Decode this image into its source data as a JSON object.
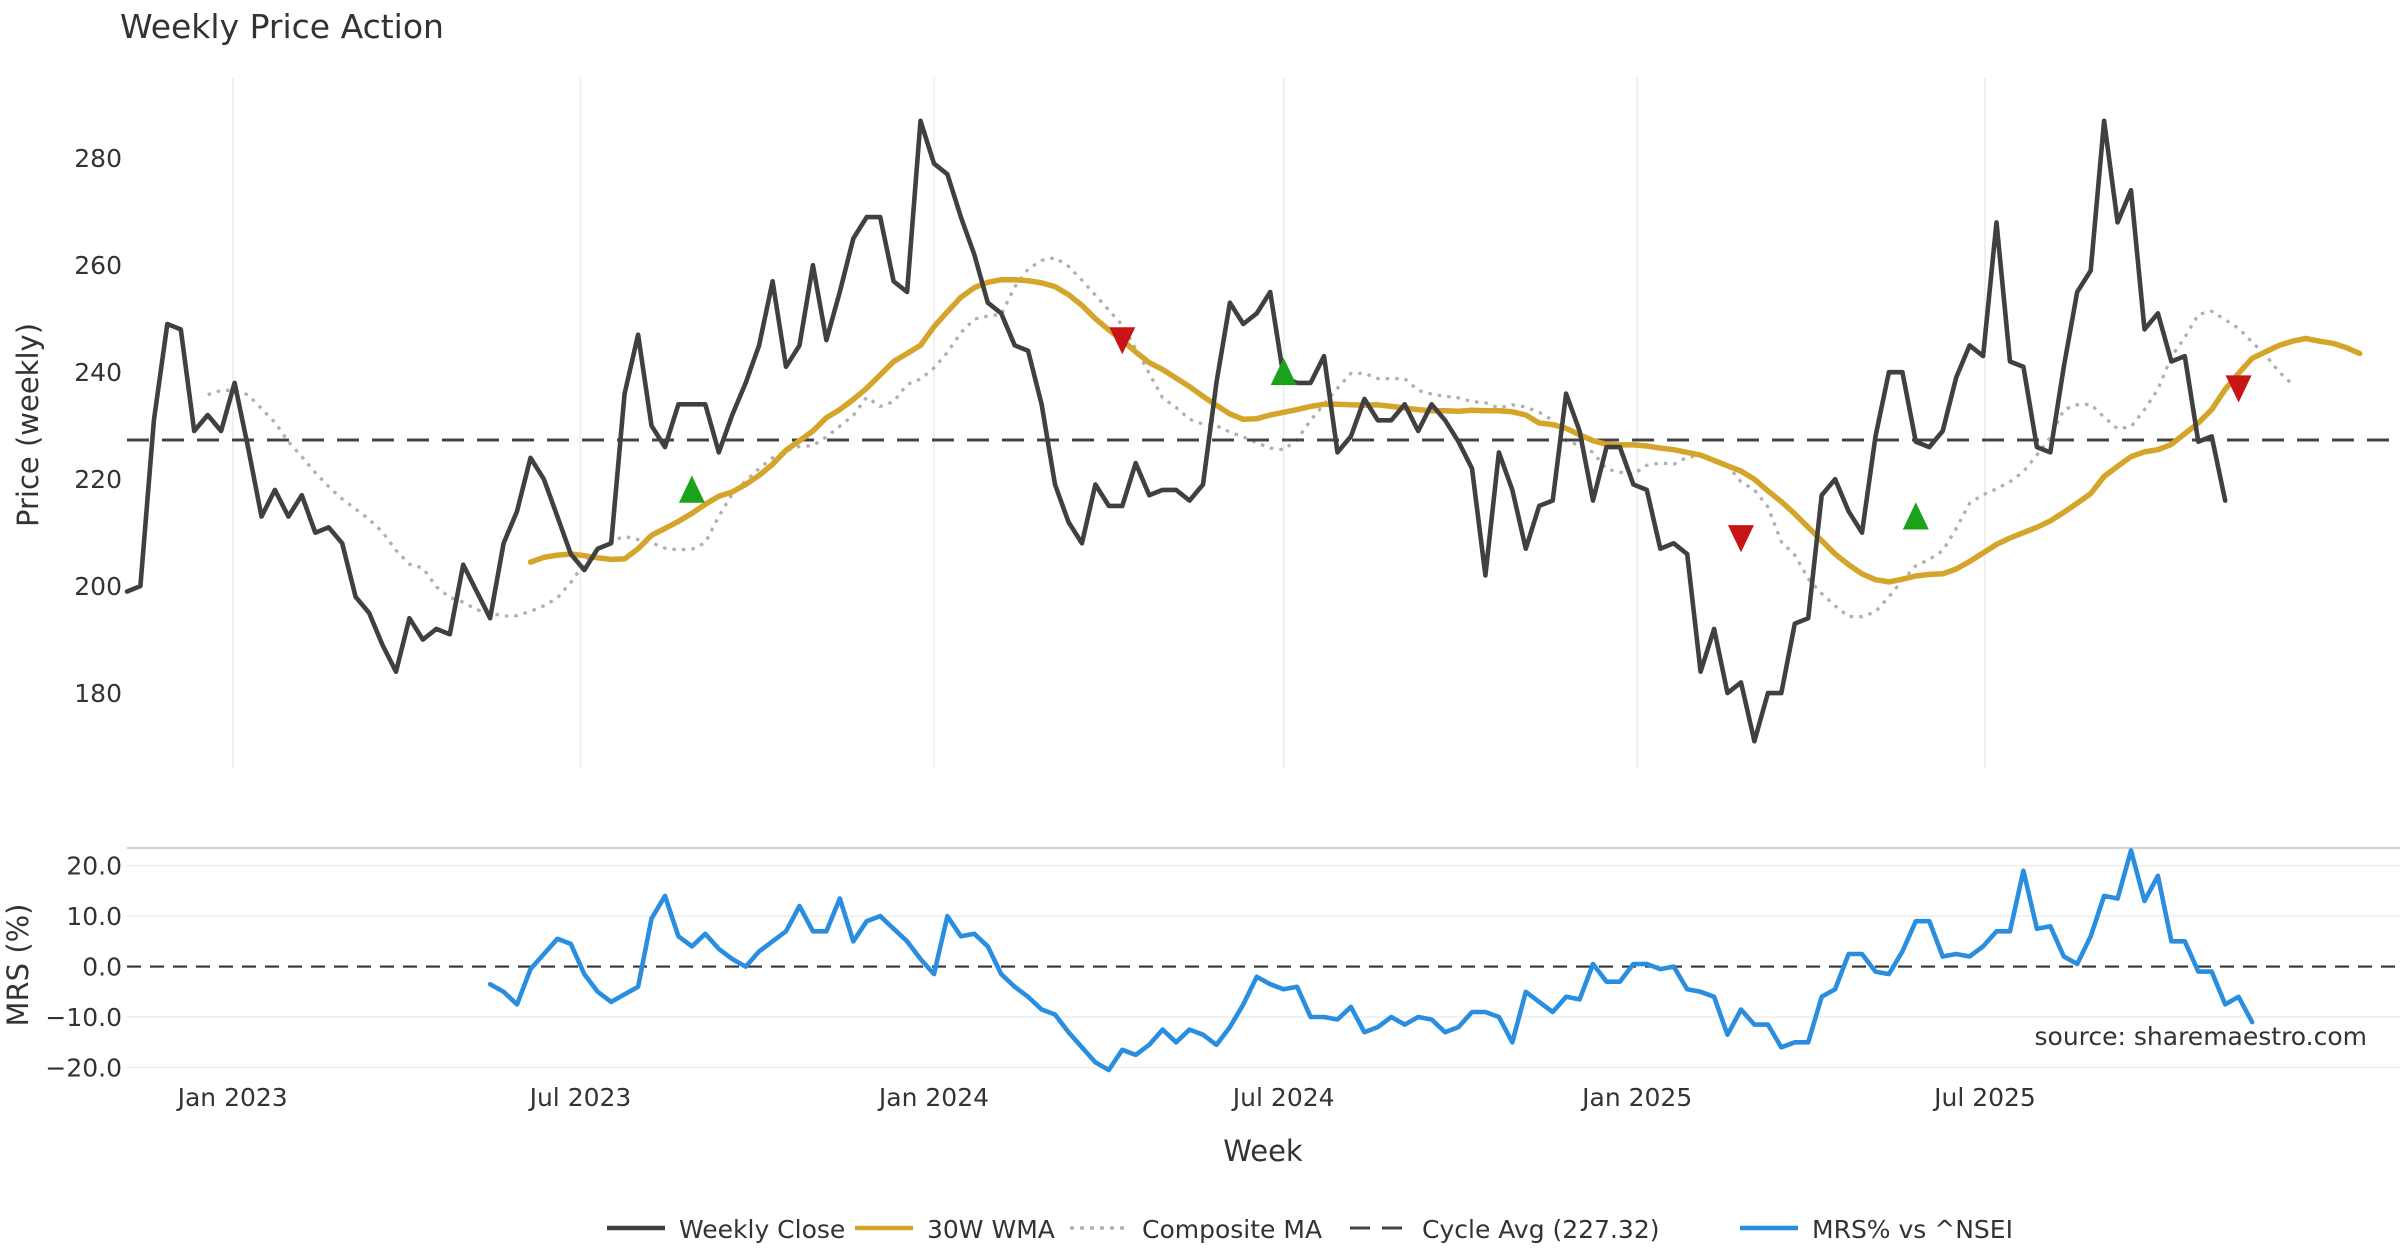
{
  "chart_data": {
    "type": "line",
    "title": "Weekly Price Action",
    "source_note": "source: sharemaestro.com",
    "xlabel": "Week",
    "x_tick_labels": [
      "Jan 2023",
      "Jul 2023",
      "Jan 2024",
      "Jul 2024",
      "Jan 2025",
      "Jul 2025"
    ],
    "x_tick_dates": [
      "2023-01-01",
      "2023-07-01",
      "2024-01-01",
      "2024-07-01",
      "2025-01-01",
      "2025-07-01"
    ],
    "x_range": [
      "2022-11-07",
      "2026-02-02"
    ],
    "price_panel": {
      "ylabel": "Price (weekly)",
      "ylim": [
        166,
        295
      ],
      "y_ticks": [
        180,
        200,
        220,
        240,
        260,
        280
      ],
      "y_tick_labels": [
        "180",
        "200",
        "220",
        "240",
        "260",
        "280"
      ],
      "grid": "vertical",
      "series": [
        {
          "name": "Weekly Close",
          "color": "#404040",
          "style": "solid",
          "start_date": "2022-11-07",
          "week_step": 1,
          "values": [
            199,
            200,
            231,
            249,
            248,
            229,
            232,
            229,
            238,
            226,
            213,
            218,
            213,
            217,
            210,
            211,
            208,
            198,
            195,
            189,
            184,
            194,
            190,
            192,
            191,
            204,
            199,
            194,
            208,
            214,
            224,
            220,
            213,
            206,
            203,
            207,
            208,
            236,
            247,
            230,
            226,
            234,
            234,
            234,
            225,
            232,
            238,
            245,
            257,
            241,
            245,
            260,
            246,
            255,
            265,
            269,
            269,
            257,
            255,
            287,
            279,
            277,
            269,
            262,
            253,
            251,
            245,
            244,
            234,
            219,
            212,
            208,
            219,
            215,
            215,
            223,
            217,
            218,
            218,
            216,
            219,
            238,
            253,
            249,
            251,
            255,
            239,
            238,
            238,
            243,
            225,
            228,
            235,
            231,
            231,
            234,
            229,
            234,
            231,
            227,
            222,
            202,
            225,
            218,
            207,
            215,
            216,
            236,
            229,
            216,
            226,
            226,
            219,
            218,
            207,
            208,
            206,
            184,
            192,
            180,
            182,
            171,
            180,
            180,
            193,
            194,
            217,
            220,
            214,
            210,
            228,
            240,
            240,
            227,
            226,
            229,
            239,
            245,
            243,
            268,
            242,
            241,
            226,
            225,
            241,
            255,
            259,
            287,
            268,
            274,
            248,
            251,
            242,
            243,
            227,
            228,
            216
          ]
        },
        {
          "name": "30W WMA",
          "color": "#d4a52a",
          "style": "solid",
          "start_date": "2023-06-05",
          "week_step": 1,
          "values": [
            204.5,
            205.4,
            205.8,
            206.0,
            205.7,
            205.3,
            205.0,
            205.1,
            207.0,
            209.5,
            210.8,
            212.1,
            213.6,
            215.3,
            216.8,
            217.6,
            219.0,
            220.7,
            222.8,
            225.4,
            227.2,
            229.0,
            231.5,
            233.0,
            234.9,
            237.0,
            239.5,
            242.0,
            243.5,
            245.0,
            248.5,
            251.3,
            254.0,
            255.8,
            256.8,
            257.3,
            257.3,
            257.1,
            256.7,
            256.0,
            254.5,
            252.5,
            250.0,
            247.9,
            246.0,
            243.8,
            241.8,
            240.5,
            238.9,
            237.3,
            235.5,
            233.8,
            232.2,
            231.2,
            231.3,
            232.0,
            232.5,
            233.0,
            233.6,
            234.0,
            234.0,
            233.9,
            233.8,
            233.9,
            233.6,
            233.3,
            233.0,
            232.8,
            232.8,
            232.7,
            232.9,
            232.8,
            232.8,
            232.6,
            232.0,
            230.5,
            230.2,
            229.5,
            228.3,
            227.2,
            226.5,
            226.4,
            226.4,
            226.2,
            225.8,
            225.5,
            225.0,
            224.5,
            223.5,
            222.5,
            221.5,
            220.0,
            217.8,
            215.8,
            213.5,
            211.0,
            208.5,
            206.0,
            204.0,
            202.3,
            201.2,
            200.8,
            201.3,
            201.9,
            202.2,
            202.3,
            203.2,
            204.6,
            206.2,
            207.8,
            209.0,
            210.0,
            211.0,
            212.2,
            213.8,
            215.5,
            217.3,
            220.5,
            222.4,
            224.2,
            225.1,
            225.5,
            226.5,
            228.5,
            230.5,
            233.0,
            236.8,
            239.8,
            242.6,
            243.8,
            245.0,
            245.8,
            246.3,
            245.8,
            245.4,
            244.6,
            243.5
          ]
        },
        {
          "name": "Composite MA",
          "color": "#b0b0b0",
          "style": "dotted",
          "start_date": "2022-12-19",
          "week_step": 1,
          "values": [
            235.8,
            236.6,
            236.6,
            235.8,
            233.2,
            230.6,
            227.0,
            224.2,
            221.2,
            218.6,
            216.3,
            214.4,
            212.5,
            210.1,
            206.7,
            204.1,
            203.4,
            199.9,
            197.9,
            197.0,
            195.6,
            195.0,
            194.4,
            194.5,
            195.3,
            196.3,
            197.8,
            200.7,
            204.2,
            207.0,
            208.4,
            209.3,
            208.7,
            208.1,
            207.1,
            206.8,
            206.9,
            208.1,
            213.1,
            217.2,
            219.7,
            222.0,
            224.0,
            225.3,
            226.1,
            226.3,
            227.9,
            229.9,
            231.9,
            235.3,
            233.6,
            234.5,
            237.7,
            238.7,
            240.8,
            243.7,
            247.4,
            249.9,
            250.5,
            250.8,
            255.9,
            259.3,
            260.9,
            261.4,
            259.8,
            257.2,
            254.4,
            251.6,
            248.8,
            244.4,
            239.8,
            235.2,
            233.4,
            231.2,
            230.3,
            230.0,
            228.8,
            227.9,
            226.8,
            225.8,
            225.5,
            227.4,
            231.0,
            234.0,
            237.0,
            239.8,
            239.8,
            238.8,
            238.8,
            238.8,
            236.6,
            235.9,
            235.5,
            235.2,
            234.5,
            234.3,
            233.3,
            233.9,
            233.5,
            232.5,
            231.0,
            227.2,
            226.3,
            225.0,
            221.9,
            221.3,
            220.9,
            222.6,
            223.0,
            222.8,
            224.1,
            224.4,
            223.7,
            222.6,
            219.5,
            218.0,
            214.8,
            208.3,
            205.8,
            201.4,
            198.6,
            196.3,
            194.3,
            194.3,
            195.2,
            198.0,
            201.1,
            203.8,
            205.0,
            206.6,
            210.8,
            215.5,
            217.1,
            218.2,
            219.5,
            221.4,
            224.5,
            227.8,
            233.0,
            233.9,
            234.0,
            231.6,
            229.4,
            229.8,
            233.0,
            236.8,
            242.9,
            246.5,
            250.8,
            251.4,
            249.8,
            248.2,
            245.6,
            243.2,
            240.1,
            237.7
          ]
        },
        {
          "name": "Cycle Avg (227.32)",
          "color": "#444444",
          "style": "dashed",
          "value": 227.32
        }
      ],
      "signals": [
        {
          "type": "buy",
          "date": "2023-08-28",
          "value": 217.5,
          "color": "#1aa31a"
        },
        {
          "type": "sell",
          "date": "2024-04-08",
          "value": 246.5,
          "color": "#c81414"
        },
        {
          "type": "buy",
          "date": "2024-07-01",
          "value": 239.5,
          "color": "#1aa31a"
        },
        {
          "type": "sell",
          "date": "2025-02-24",
          "value": 209.5,
          "color": "#c81414"
        },
        {
          "type": "buy",
          "date": "2025-05-26",
          "value": 212.5,
          "color": "#1aa31a"
        },
        {
          "type": "sell",
          "date": "2025-11-10",
          "value": 237.5,
          "color": "#c81414"
        }
      ]
    },
    "mrs_panel": {
      "ylabel": "MRS (%)",
      "ylim": [
        -20.5,
        23.5
      ],
      "y_ticks": [
        -20,
        -10,
        0,
        10,
        20
      ],
      "y_tick_labels": [
        "−20.0",
        "−10.0",
        "0.0",
        "10.0",
        "20.0"
      ],
      "grid": "horizontal",
      "zero_line_style": "dashed",
      "series": [
        {
          "name": "MRS% vs ^NSEI",
          "color": "#2a8ee0",
          "style": "solid",
          "start_date": "2023-05-15",
          "week_step": 1,
          "values": [
            -3.5,
            -5.0,
            -7.5,
            -0.5,
            2.5,
            5.5,
            4.5,
            -1.5,
            -5.0,
            -7.0,
            -5.5,
            -4.0,
            9.5,
            14.0,
            6.0,
            4.0,
            6.5,
            3.5,
            1.5,
            0.0,
            3.0,
            5.0,
            7.0,
            12.0,
            7.0,
            7.0,
            13.5,
            5.0,
            9.0,
            10.0,
            7.5,
            5.0,
            1.5,
            -1.5,
            10.0,
            6.0,
            6.5,
            4.0,
            -1.5,
            -4.0,
            -6.0,
            -8.5,
            -9.5,
            -13.0,
            -16.0,
            -19.0,
            -20.5,
            -16.5,
            -17.5,
            -15.5,
            -12.5,
            -15.0,
            -12.5,
            -13.5,
            -15.5,
            -12.0,
            -7.5,
            -2.0,
            -3.5,
            -4.5,
            -4.0,
            -10.0,
            -10.0,
            -10.5,
            -8.0,
            -13.0,
            -12.0,
            -10.0,
            -11.5,
            -10.0,
            -10.5,
            -13.0,
            -12.0,
            -9.0,
            -9.0,
            -10.0,
            -15.0,
            -5.0,
            -7.0,
            -9.0,
            -6.0,
            -6.5,
            0.5,
            -3.0,
            -3.0,
            0.5,
            0.5,
            -0.5,
            0.0,
            -4.5,
            -5.0,
            -6.0,
            -13.5,
            -8.5,
            -11.5,
            -11.5,
            -16.0,
            -15.0,
            -15.0,
            -6.0,
            -4.5,
            2.5,
            2.5,
            -1.0,
            -1.5,
            3.0,
            9.0,
            9.0,
            2.0,
            2.5,
            2.0,
            4.0,
            7.0,
            7.0,
            19.0,
            7.5,
            8.0,
            2.0,
            0.5,
            6.0,
            14.0,
            13.5,
            23.0,
            13.0,
            18.0,
            5.0,
            5.0,
            -1.0,
            -1.0,
            -7.5,
            -6.0,
            -11.0
          ]
        }
      ]
    },
    "legend": {
      "placement": "bottom-center",
      "entries": [
        {
          "label": "Weekly Close",
          "color": "#404040",
          "style": "solid"
        },
        {
          "label": "30W WMA",
          "color": "#d4a52a",
          "style": "solid"
        },
        {
          "label": "Composite MA",
          "color": "#b0b0b0",
          "style": "dotted"
        },
        {
          "label": "Cycle Avg (227.32)",
          "color": "#444444",
          "style": "dashed"
        },
        {
          "label": "MRS% vs ^NSEI",
          "color": "#2a8ee0",
          "style": "solid"
        }
      ]
    }
  }
}
